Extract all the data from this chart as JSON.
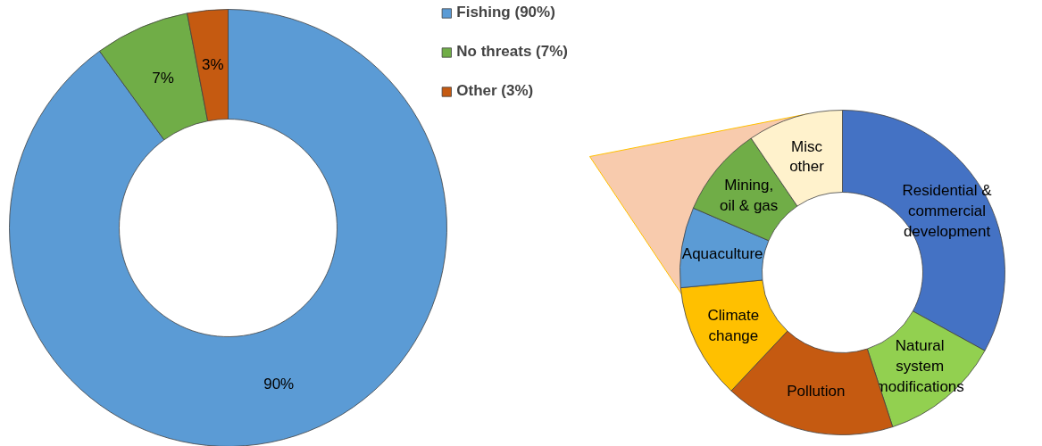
{
  "chart_data": [
    {
      "type": "donut",
      "categories": [
        "Fishing (90%)",
        "No threats (7%)",
        "Other (3%)"
      ],
      "values": [
        90,
        7,
        3
      ],
      "colors": [
        "#5b9bd5",
        "#70ad47",
        "#c55a11"
      ],
      "value_labels": [
        "90%",
        "7%",
        "3%"
      ],
      "legend": "top right"
    },
    {
      "type": "donut",
      "categories": [
        "Residential &\ncommercial\ndevelopment",
        "Natural\nsystem\nmodifications",
        "Pollution",
        "Climate\nchange",
        "Aquaculture",
        "Mining,\noil & gas",
        "Misc\nother"
      ],
      "values": [
        33,
        12,
        17,
        11.5,
        8,
        9,
        9.5
      ],
      "colors": [
        "#4472c4",
        "#92d050",
        "#c55a11",
        "#ffc000",
        "#5b9bd5",
        "#70ad47",
        "#fff2cc"
      ]
    }
  ]
}
